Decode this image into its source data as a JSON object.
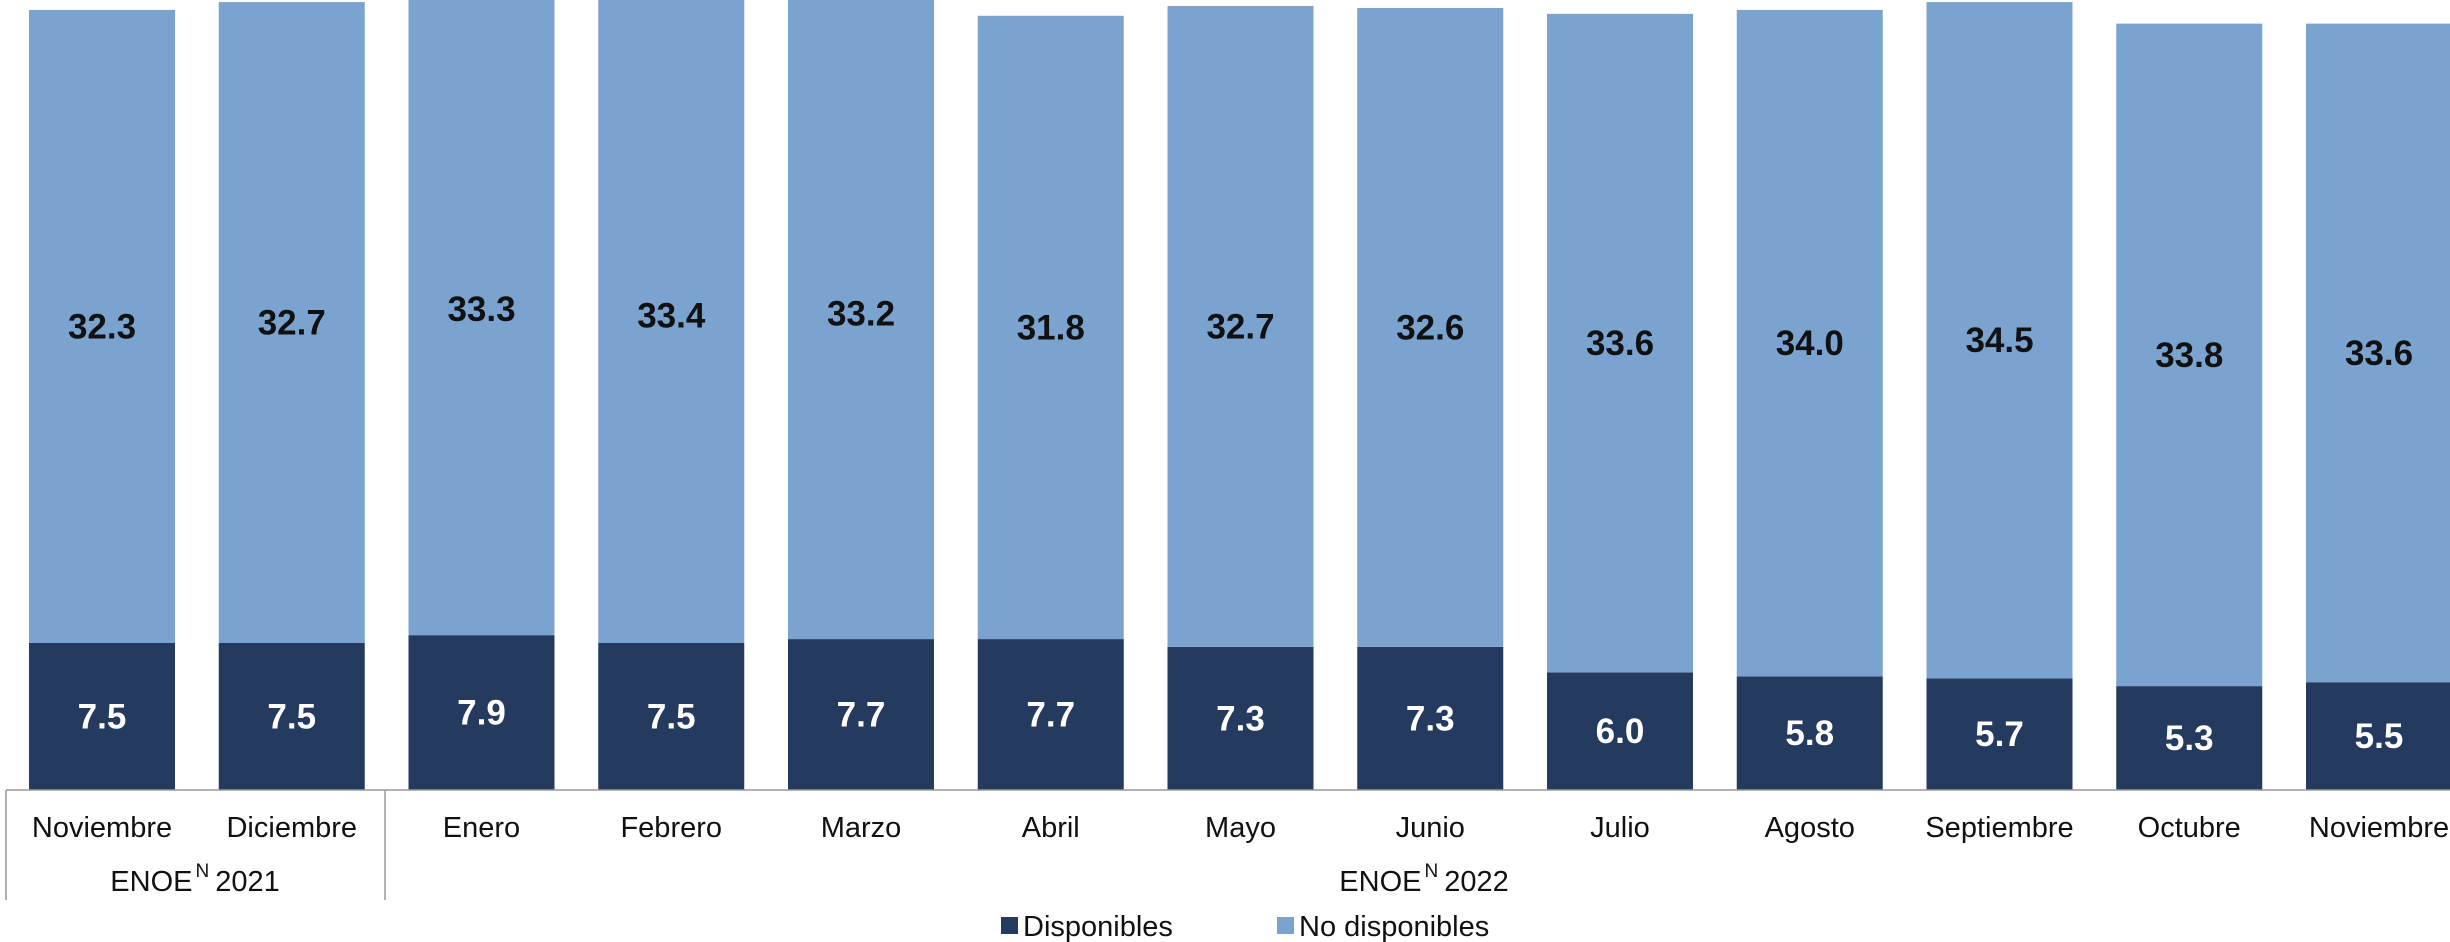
{
  "chart_data": {
    "type": "bar",
    "stacked": true,
    "categories": [
      "Noviembre",
      "Diciembre",
      "Enero",
      "Febrero",
      "Marzo",
      "Abril",
      "Mayo",
      "Junio",
      "Julio",
      "Agosto",
      "Septiembre",
      "Octubre",
      "Noviembre"
    ],
    "groups": [
      {
        "label": "ENOE",
        "superscript": "N",
        "year": "2021",
        "categories": [
          "Noviembre",
          "Diciembre"
        ]
      },
      {
        "label": "ENOE",
        "superscript": "N",
        "year": "2022",
        "categories": [
          "Enero",
          "Febrero",
          "Marzo",
          "Abril",
          "Mayo",
          "Junio",
          "Julio",
          "Agosto",
          "Septiembre",
          "Octubre",
          "Noviembre"
        ]
      }
    ],
    "series": [
      {
        "name": "Disponibles",
        "color": "#243a5e",
        "values": [
          7.5,
          7.5,
          7.9,
          7.5,
          7.7,
          7.7,
          7.3,
          7.3,
          6.0,
          5.8,
          5.7,
          5.3,
          5.5
        ]
      },
      {
        "name": "No disponibles",
        "color": "#7ba3d0",
        "values": [
          32.3,
          32.7,
          33.3,
          33.4,
          33.2,
          31.8,
          32.7,
          32.6,
          33.6,
          34.0,
          34.5,
          33.8,
          33.6
        ]
      }
    ],
    "data_labels": true,
    "legend_position": "bottom",
    "grid": false,
    "y_axis_visible": false
  }
}
